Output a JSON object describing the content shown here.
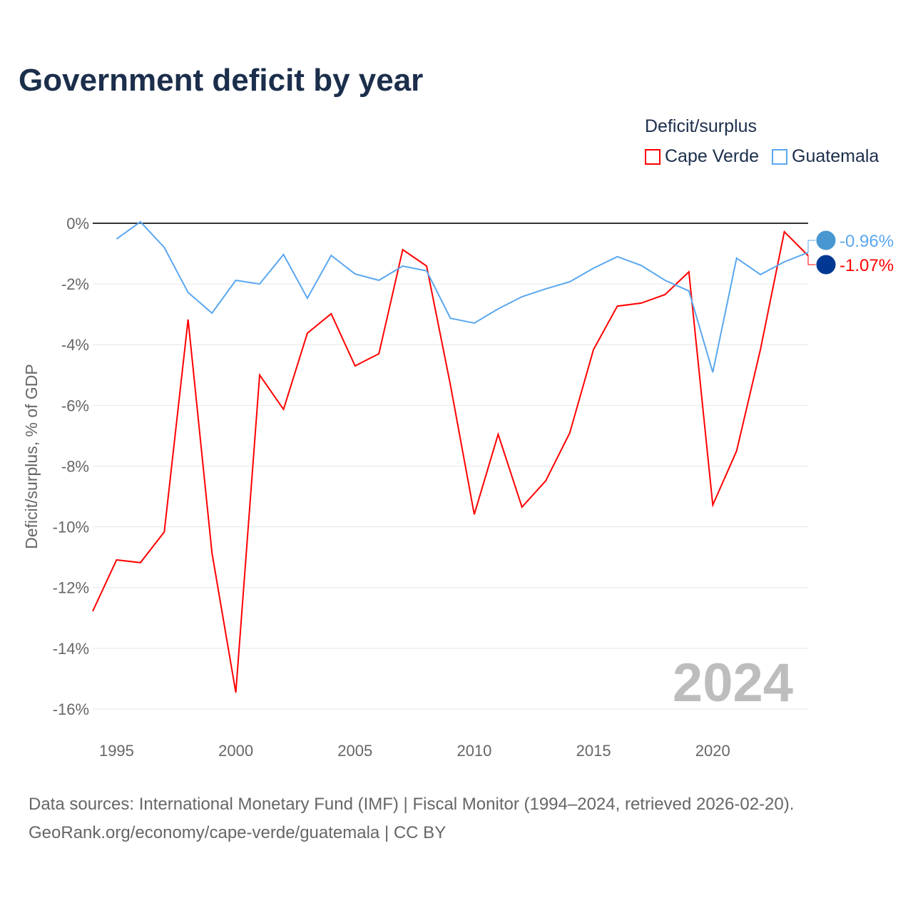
{
  "title": "Government deficit by year",
  "legend": {
    "title": "Deficit/surplus",
    "items": [
      {
        "label": "Cape Verde",
        "color": "#ff0000"
      },
      {
        "label": "Guatemala",
        "color": "#5aa7f0"
      }
    ]
  },
  "footer": {
    "line1": "Data sources: International Monetary Fund (IMF) | Fiscal Monitor (1994–2024, retrieved 2026-02-20).",
    "line2": "GeoRank.org/economy/cape-verde/guatemala | CC BY"
  },
  "chart_data": {
    "type": "line",
    "title": "Government deficit by year",
    "xlabel": "",
    "ylabel": "Deficit/surplus, % of GDP",
    "xlim": [
      1994,
      2024
    ],
    "ylim": [
      -16.5,
      0.3
    ],
    "xticks": [
      1995,
      2000,
      2005,
      2010,
      2015,
      2020
    ],
    "xtick_labels": [
      "1995",
      "2000",
      "2005",
      "2010",
      "2015",
      "2020"
    ],
    "yticks": [
      0,
      -2,
      -4,
      -6,
      -8,
      -10,
      -12,
      -14,
      -16
    ],
    "ytick_labels": [
      "0%",
      "-2%",
      "-4%",
      "-6%",
      "-8%",
      "-10%",
      "-12%",
      "-14%",
      "-16%"
    ],
    "watermark": "2024",
    "series": [
      {
        "name": "Cape Verde",
        "color": "#ff0000",
        "end_label": "-1.07%",
        "x": [
          1994,
          1995,
          1996,
          1997,
          1998,
          1999,
          2000,
          2001,
          2002,
          2003,
          2004,
          2005,
          2006,
          2007,
          2008,
          2009,
          2010,
          2011,
          2012,
          2013,
          2014,
          2015,
          2016,
          2017,
          2018,
          2019,
          2020,
          2021,
          2022,
          2023,
          2024
        ],
        "y": [
          -12.78,
          -11.09,
          -11.18,
          -10.17,
          -3.17,
          -10.86,
          -15.46,
          -5.0,
          -6.13,
          -3.62,
          -2.98,
          -4.7,
          -4.3,
          -0.87,
          -1.41,
          -5.33,
          -9.59,
          -6.95,
          -9.35,
          -8.48,
          -6.91,
          -4.16,
          -2.73,
          -2.63,
          -2.35,
          -1.6,
          -9.28,
          -7.5,
          -4.16,
          -0.28,
          -1.07
        ]
      },
      {
        "name": "Guatemala",
        "color": "#5aa7f0",
        "end_label": "-0.96%",
        "x": [
          1995,
          1996,
          1997,
          1998,
          1999,
          2000,
          2001,
          2002,
          2003,
          2004,
          2005,
          2006,
          2007,
          2008,
          2009,
          2010,
          2011,
          2012,
          2013,
          2014,
          2015,
          2016,
          2017,
          2018,
          2019,
          2020,
          2021,
          2022,
          2023,
          2024
        ],
        "y": [
          -0.52,
          0.05,
          -0.8,
          -2.28,
          -2.96,
          -1.88,
          -2.0,
          -1.03,
          -2.47,
          -1.06,
          -1.67,
          -1.88,
          -1.41,
          -1.57,
          -3.13,
          -3.29,
          -2.82,
          -2.42,
          -2.16,
          -1.93,
          -1.48,
          -1.1,
          -1.39,
          -1.88,
          -2.23,
          -4.91,
          -1.15,
          -1.69,
          -1.27,
          -0.96
        ]
      }
    ]
  }
}
